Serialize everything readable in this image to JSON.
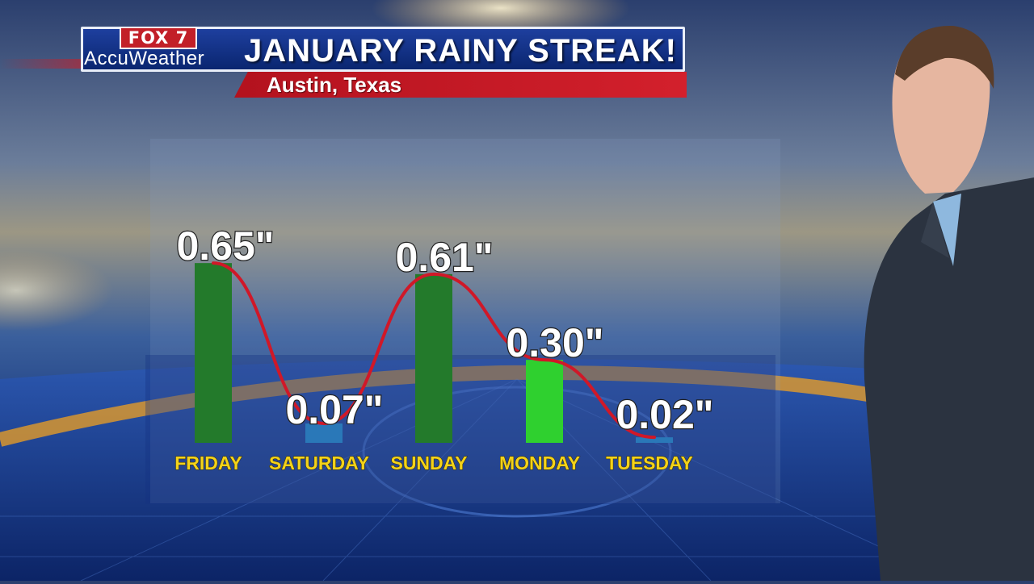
{
  "header": {
    "logo": "FOX 7",
    "station": "AccuWeather",
    "headline": "JANUARY RAINY STREAK!",
    "location": "Austin, Texas"
  },
  "colors": {
    "header_blue": "#0a2670",
    "header_red": "#c81e28",
    "label_yellow": "#f3d21a",
    "line_red": "#d01828"
  },
  "chart_data": {
    "type": "bar",
    "categories": [
      "FRIDAY",
      "SATURDAY",
      "SUNDAY",
      "MONDAY",
      "TUESDAY"
    ],
    "values": [
      0.65,
      0.07,
      0.61,
      0.3,
      0.02
    ],
    "value_labels": [
      "0.65\"",
      "0.07\"",
      "0.61\"",
      "0.30\"",
      "0.02\""
    ],
    "bar_colors": [
      "#237a2b",
      "#2a78b8",
      "#237a2b",
      "#2fd02f",
      "#2a78b8"
    ],
    "trend_line": true,
    "title": "",
    "xlabel": "",
    "ylabel": "",
    "ylim": [
      0,
      0.7
    ]
  }
}
